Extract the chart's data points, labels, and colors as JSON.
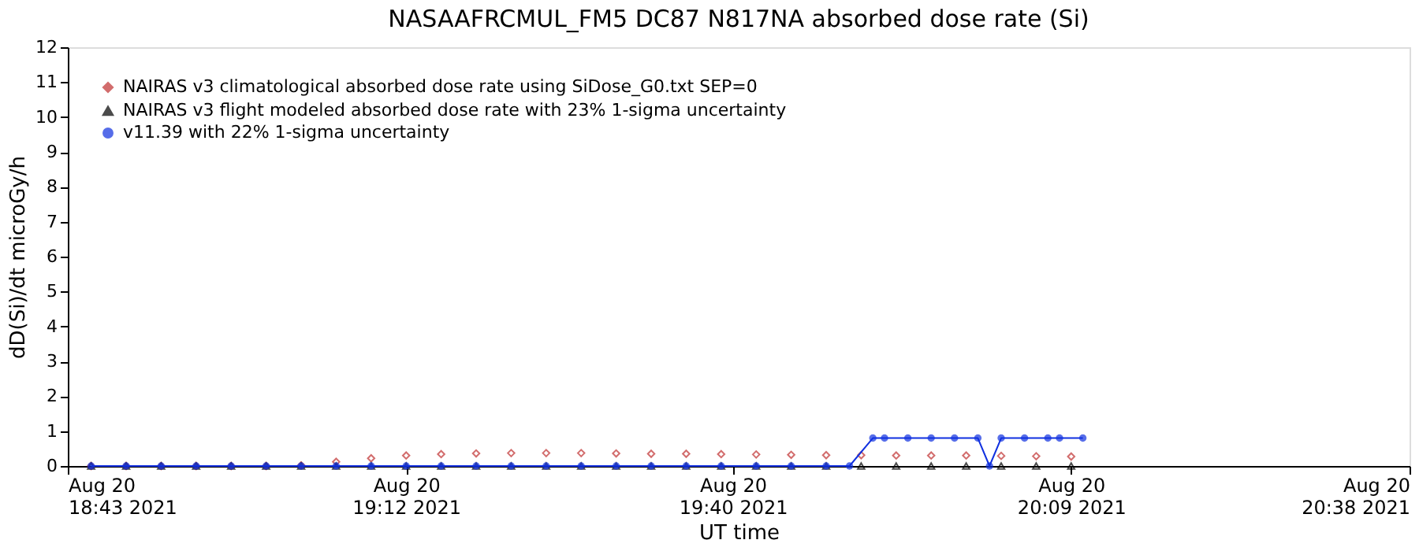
{
  "chart_data": {
    "type": "scatter",
    "title": "NASAAFRCMUL_FM5 DC87 N817NA absorbed dose rate (Si)",
    "xlabel": "UT time",
    "ylabel": "dD(Si)/dt microGy/h",
    "xlim": [
      "2021-08-20T18:43",
      "2021-08-20T20:38"
    ],
    "xticks": [
      {
        "value": "2021-08-20T18:43",
        "label": "Aug 20\n18:43 2021"
      },
      {
        "value": "2021-08-20T19:12",
        "label": "Aug 20\n19:12 2021"
      },
      {
        "value": "2021-08-20T19:40",
        "label": "Aug 20\n19:40 2021"
      },
      {
        "value": "2021-08-20T20:09",
        "label": "Aug 20\n20:09 2021"
      },
      {
        "value": "2021-08-20T20:38",
        "label": "Aug 20\n20:38 2021"
      }
    ],
    "ylim": [
      0,
      12
    ],
    "yticks": [
      0,
      1,
      2,
      3,
      4,
      5,
      6,
      7,
      8,
      9,
      10,
      11,
      12
    ],
    "grid": false,
    "legend": "top left",
    "series": [
      {
        "name": "NAIRAS v3 climatological absorbed dose rate using SiDose_G0.txt SEP=0",
        "marker": "diamond",
        "color": "#c03030",
        "x": [
          "2021-08-20T18:45",
          "2021-08-20T18:48",
          "2021-08-20T18:51",
          "2021-08-20T18:54",
          "2021-08-20T18:57",
          "2021-08-20T19:00",
          "2021-08-20T19:03",
          "2021-08-20T19:06",
          "2021-08-20T19:09",
          "2021-08-20T19:12",
          "2021-08-20T19:15",
          "2021-08-20T19:18",
          "2021-08-20T19:21",
          "2021-08-20T19:24",
          "2021-08-20T19:27",
          "2021-08-20T19:30",
          "2021-08-20T19:33",
          "2021-08-20T19:36",
          "2021-08-20T19:39",
          "2021-08-20T19:42",
          "2021-08-20T19:45",
          "2021-08-20T19:48",
          "2021-08-20T19:51",
          "2021-08-20T19:54",
          "2021-08-20T19:57",
          "2021-08-20T20:00",
          "2021-08-20T20:03",
          "2021-08-20T20:06",
          "2021-08-20T20:09"
        ],
        "values": [
          0,
          0,
          0,
          0,
          0,
          0,
          0.02,
          0.12,
          0.22,
          0.3,
          0.34,
          0.36,
          0.37,
          0.37,
          0.37,
          0.36,
          0.35,
          0.35,
          0.34,
          0.33,
          0.32,
          0.31,
          0.31,
          0.3,
          0.3,
          0.3,
          0.29,
          0.28,
          0.27
        ]
      },
      {
        "name": "NAIRAS v3 flight modeled absorbed dose rate with 23% 1-sigma uncertainty",
        "type": "scatter",
        "marker": "triangle",
        "color": "#000000",
        "x": [
          "2021-08-20T18:45",
          "2021-08-20T18:48",
          "2021-08-20T18:51",
          "2021-08-20T18:54",
          "2021-08-20T18:57",
          "2021-08-20T19:00",
          "2021-08-20T19:03",
          "2021-08-20T19:06",
          "2021-08-20T19:09",
          "2021-08-20T19:12",
          "2021-08-20T19:15",
          "2021-08-20T19:18",
          "2021-08-20T19:21",
          "2021-08-20T19:24",
          "2021-08-20T19:27",
          "2021-08-20T19:30",
          "2021-08-20T19:33",
          "2021-08-20T19:36",
          "2021-08-20T19:39",
          "2021-08-20T19:42",
          "2021-08-20T19:45",
          "2021-08-20T19:48",
          "2021-08-20T19:51",
          "2021-08-20T19:54",
          "2021-08-20T19:57",
          "2021-08-20T20:00",
          "2021-08-20T20:03",
          "2021-08-20T20:06",
          "2021-08-20T20:09"
        ],
        "values": [
          0,
          0,
          0,
          0,
          0,
          0,
          0,
          0,
          0,
          0,
          0,
          0,
          0,
          0,
          0,
          0,
          0,
          0,
          0,
          0,
          0,
          0,
          0,
          0,
          0,
          0,
          0,
          0,
          0
        ]
      },
      {
        "name": "v11.39 with 22% 1-sigma uncertainty",
        "type": "line",
        "marker": "circle",
        "color": "#1030e0",
        "x": [
          "2021-08-20T18:45",
          "2021-08-20T18:48",
          "2021-08-20T18:51",
          "2021-08-20T18:54",
          "2021-08-20T18:57",
          "2021-08-20T19:00",
          "2021-08-20T19:03",
          "2021-08-20T19:06",
          "2021-08-20T19:09",
          "2021-08-20T19:12",
          "2021-08-20T19:15",
          "2021-08-20T19:18",
          "2021-08-20T19:21",
          "2021-08-20T19:24",
          "2021-08-20T19:27",
          "2021-08-20T19:30",
          "2021-08-20T19:33",
          "2021-08-20T19:36",
          "2021-08-20T19:39",
          "2021-08-20T19:42",
          "2021-08-20T19:45",
          "2021-08-20T19:48",
          "2021-08-20T19:50",
          "2021-08-20T19:52",
          "2021-08-20T19:53",
          "2021-08-20T19:55",
          "2021-08-20T19:57",
          "2021-08-20T19:59",
          "2021-08-20T20:01",
          "2021-08-20T20:02",
          "2021-08-20T20:03",
          "2021-08-20T20:05",
          "2021-08-20T20:07",
          "2021-08-20T20:08",
          "2021-08-20T20:10"
        ],
        "values": [
          0,
          0,
          0,
          0,
          0,
          0,
          0,
          0,
          0,
          0,
          0,
          0,
          0,
          0,
          0,
          0,
          0,
          0,
          0,
          0,
          0,
          0,
          0,
          0.8,
          0.8,
          0.8,
          0.8,
          0.8,
          0.8,
          0,
          0.8,
          0.8,
          0.8,
          0.8,
          0.8
        ]
      }
    ]
  }
}
